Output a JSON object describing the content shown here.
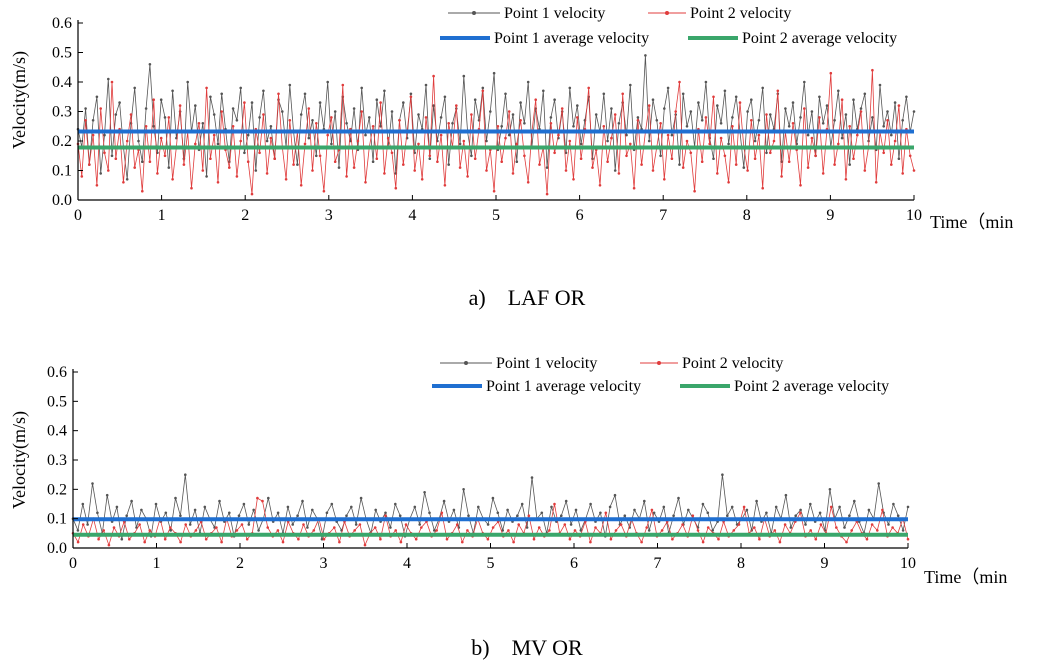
{
  "colors": {
    "point1": "#555555",
    "point2": "#e03c3c",
    "point1_avg": "#1f6fd1",
    "point2_avg": "#3aa66b"
  },
  "chart_data": [
    {
      "type": "line",
      "caption": "a)    LAF OR",
      "xlabel": "Time（min",
      "ylabel": "Velocity(m/s)",
      "xlim": [
        0,
        10
      ],
      "ylim": [
        0,
        0.6
      ],
      "xticks": [
        0,
        1,
        2,
        3,
        4,
        5,
        6,
        7,
        8,
        9,
        10
      ],
      "yticks": [
        "0.0",
        "0.1",
        "0.2",
        "0.3",
        "0.4",
        "0.5",
        "0.6"
      ],
      "legend_position": "top-right",
      "series": [
        {
          "name": "Point 1 velocity",
          "color": "#555555",
          "x_start": 0,
          "x_end": 10,
          "values": [
            0.24,
            0.18,
            0.31,
            0.12,
            0.27,
            0.35,
            0.09,
            0.22,
            0.41,
            0.15,
            0.29,
            0.33,
            0.18,
            0.07,
            0.26,
            0.38,
            0.2,
            0.13,
            0.31,
            0.46,
            0.25,
            0.16,
            0.34,
            0.28,
            0.11,
            0.37,
            0.21,
            0.3,
            0.14,
            0.4,
            0.23,
            0.32,
            0.17,
            0.26,
            0.08,
            0.35,
            0.29,
            0.19,
            0.36,
            0.24,
            0.13,
            0.31,
            0.27,
            0.38,
            0.16,
            0.22,
            0.33,
            0.1,
            0.28,
            0.37,
            0.2,
            0.25,
            0.14,
            0.34,
            0.3,
            0.18,
            0.39,
            0.23,
            0.12,
            0.29,
            0.36,
            0.21,
            0.27,
            0.15,
            0.33,
            0.24,
            0.4,
            0.19,
            0.3,
            0.11,
            0.35,
            0.26,
            0.2,
            0.31,
            0.17,
            0.38,
            0.22,
            0.28,
            0.13,
            0.34,
            0.25,
            0.37,
            0.18,
            0.3,
            0.09,
            0.27,
            0.33,
            0.21,
            0.36,
            0.16,
            0.29,
            0.24,
            0.39,
            0.14,
            0.32,
            0.2,
            0.28,
            0.35,
            0.12,
            0.26,
            0.31,
            0.19,
            0.42,
            0.23,
            0.15,
            0.34,
            0.27,
            0.38,
            0.2,
            0.3,
            0.43,
            0.17,
            0.25,
            0.36,
            0.22,
            0.29,
            0.13,
            0.33,
            0.26,
            0.4,
            0.18,
            0.31,
            0.24,
            0.37,
            0.11,
            0.28,
            0.34,
            0.21,
            0.3,
            0.16,
            0.38,
            0.25,
            0.32,
            0.19,
            0.27,
            0.35,
            0.14,
            0.29,
            0.23,
            0.36,
            0.2,
            0.31,
            0.1,
            0.26,
            0.33,
            0.22,
            0.39,
            0.17,
            0.28,
            0.24,
            0.49,
            0.2,
            0.34,
            0.27,
            0.15,
            0.31,
            0.38,
            0.22,
            0.29,
            0.12,
            0.36,
            0.25,
            0.3,
            0.18,
            0.33,
            0.27,
            0.4,
            0.21,
            0.14,
            0.32,
            0.26,
            0.37,
            0.19,
            0.28,
            0.35,
            0.23,
            0.11,
            0.3,
            0.34,
            0.2,
            0.27,
            0.38,
            0.16,
            0.29,
            0.24,
            0.36,
            0.13,
            0.31,
            0.25,
            0.33,
            0.19,
            0.28,
            0.4,
            0.22,
            0.3,
            0.15,
            0.35,
            0.26,
            0.32,
            0.18,
            0.27,
            0.37,
            0.21,
            0.29,
            0.12,
            0.34,
            0.24,
            0.31,
            0.36,
            0.2,
            0.28,
            0.17,
            0.39,
            0.25,
            0.3,
            0.22,
            0.33,
            0.14,
            0.27,
            0.35,
            0.23,
            0.3
          ]
        },
        {
          "name": "Point 2 velocity",
          "color": "#e03c3c",
          "x_start": 0,
          "x_end": 10,
          "values": [
            0.19,
            0.08,
            0.27,
            0.12,
            0.22,
            0.05,
            0.31,
            0.16,
            0.1,
            0.4,
            0.14,
            0.24,
            0.06,
            0.2,
            0.29,
            0.11,
            0.17,
            0.03,
            0.25,
            0.13,
            0.34,
            0.09,
            0.21,
            0.15,
            0.28,
            0.07,
            0.18,
            0.32,
            0.12,
            0.23,
            0.04,
            0.19,
            0.26,
            0.1,
            0.38,
            0.14,
            0.22,
            0.06,
            0.3,
            0.17,
            0.11,
            0.25,
            0.08,
            0.2,
            0.33,
            0.13,
            0.02,
            0.24,
            0.16,
            0.29,
            0.09,
            0.21,
            0.14,
            0.36,
            0.18,
            0.07,
            0.27,
            0.12,
            0.23,
            0.05,
            0.19,
            0.31,
            0.1,
            0.26,
            0.15,
            0.03,
            0.22,
            0.28,
            0.13,
            0.17,
            0.39,
            0.08,
            0.24,
            0.11,
            0.2,
            0.3,
            0.06,
            0.18,
            0.25,
            0.14,
            0.33,
            0.09,
            0.21,
            0.16,
            0.04,
            0.27,
            0.12,
            0.23,
            0.35,
            0.1,
            0.19,
            0.07,
            0.28,
            0.15,
            0.42,
            0.13,
            0.22,
            0.05,
            0.26,
            0.18,
            0.32,
            0.11,
            0.2,
            0.08,
            0.29,
            0.14,
            0.24,
            0.37,
            0.1,
            0.17,
            0.03,
            0.25,
            0.13,
            0.21,
            0.3,
            0.09,
            0.19,
            0.27,
            0.15,
            0.06,
            0.23,
            0.34,
            0.12,
            0.18,
            0.02,
            0.26,
            0.16,
            0.22,
            0.31,
            0.1,
            0.2,
            0.07,
            0.28,
            0.14,
            0.24,
            0.38,
            0.11,
            0.17,
            0.05,
            0.25,
            0.13,
            0.21,
            0.29,
            0.09,
            0.36,
            0.15,
            0.19,
            0.04,
            0.27,
            0.12,
            0.23,
            0.32,
            0.1,
            0.18,
            0.26,
            0.07,
            0.22,
            0.14,
            0.3,
            0.4,
            0.11,
            0.2,
            0.16,
            0.03,
            0.24,
            0.13,
            0.28,
            0.19,
            0.35,
            0.09,
            0.21,
            0.15,
            0.06,
            0.25,
            0.12,
            0.33,
            0.18,
            0.1,
            0.27,
            0.14,
            0.22,
            0.04,
            0.29,
            0.16,
            0.2,
            0.37,
            0.08,
            0.23,
            0.13,
            0.26,
            0.17,
            0.05,
            0.31,
            0.11,
            0.21,
            0.15,
            0.28,
            0.09,
            0.24,
            0.43,
            0.12,
            0.19,
            0.34,
            0.07,
            0.25,
            0.14,
            0.22,
            0.3,
            0.1,
            0.18,
            0.44,
            0.06,
            0.23,
            0.16,
            0.27,
            0.12,
            0.2,
            0.32,
            0.09,
            0.24,
            0.15,
            0.1
          ]
        },
        {
          "name": "Point 1 average velocity",
          "color": "#1f6fd1",
          "constant": 0.232
        },
        {
          "name": "Point 2 average velocity",
          "color": "#3aa66b",
          "constant": 0.178
        }
      ]
    },
    {
      "type": "line",
      "caption": "b)    MV OR",
      "xlabel": "Time（min",
      "ylabel": "Velocity(m/s)",
      "xlim": [
        0,
        10
      ],
      "ylim": [
        0,
        0.6
      ],
      "xticks": [
        0,
        1,
        2,
        3,
        4,
        5,
        6,
        7,
        8,
        9,
        10
      ],
      "yticks": [
        "0.0",
        "0.1",
        "0.2",
        "0.3",
        "0.4",
        "0.5",
        "0.6"
      ],
      "legend_position": "top-right",
      "series": [
        {
          "name": "Point 1 velocity",
          "color": "#555555",
          "x_start": 0,
          "x_end": 10,
          "values": [
            0.1,
            0.06,
            0.15,
            0.08,
            0.22,
            0.12,
            0.05,
            0.18,
            0.09,
            0.14,
            0.03,
            0.11,
            0.16,
            0.07,
            0.13,
            0.1,
            0.04,
            0.15,
            0.09,
            0.12,
            0.06,
            0.17,
            0.11,
            0.25,
            0.08,
            0.13,
            0.05,
            0.14,
            0.1,
            0.07,
            0.16,
            0.09,
            0.12,
            0.04,
            0.11,
            0.15,
            0.08,
            0.13,
            0.06,
            0.1,
            0.17,
            0.09,
            0.12,
            0.05,
            0.14,
            0.08,
            0.11,
            0.16,
            0.07,
            0.13,
            0.1,
            0.03,
            0.12,
            0.15,
            0.09,
            0.06,
            0.11,
            0.14,
            0.08,
            0.17,
            0.1,
            0.05,
            0.13,
            0.09,
            0.12,
            0.07,
            0.15,
            0.11,
            0.04,
            0.1,
            0.14,
            0.08,
            0.19,
            0.12,
            0.06,
            0.1,
            0.16,
            0.09,
            0.13,
            0.07,
            0.2,
            0.11,
            0.05,
            0.14,
            0.1,
            0.08,
            0.17,
            0.12,
            0.06,
            0.13,
            0.09,
            0.11,
            0.15,
            0.07,
            0.24,
            0.1,
            0.12,
            0.05,
            0.14,
            0.09,
            0.11,
            0.16,
            0.08,
            0.13,
            0.06,
            0.1,
            0.15,
            0.09,
            0.12,
            0.04,
            0.14,
            0.18,
            0.08,
            0.11,
            0.07,
            0.13,
            0.1,
            0.16,
            0.06,
            0.12,
            0.09,
            0.14,
            0.05,
            0.11,
            0.17,
            0.08,
            0.13,
            0.1,
            0.07,
            0.15,
            0.12,
            0.06,
            0.09,
            0.25,
            0.11,
            0.14,
            0.08,
            0.1,
            0.13,
            0.06,
            0.16,
            0.09,
            0.12,
            0.05,
            0.14,
            0.1,
            0.18,
            0.07,
            0.11,
            0.13,
            0.08,
            0.15,
            0.09,
            0.12,
            0.06,
            0.2,
            0.1,
            0.14,
            0.07,
            0.11,
            0.16,
            0.09,
            0.05,
            0.13,
            0.1,
            0.22,
            0.12,
            0.08,
            0.15,
            0.11,
            0.06,
            0.14
          ]
        },
        {
          "name": "Point 2 velocity",
          "color": "#e03c3c",
          "x_start": 0,
          "x_end": 10,
          "values": [
            0.05,
            0.02,
            0.08,
            0.04,
            0.1,
            0.03,
            0.06,
            0.01,
            0.07,
            0.04,
            0.09,
            0.03,
            0.05,
            0.08,
            0.02,
            0.06,
            0.04,
            0.1,
            0.03,
            0.07,
            0.05,
            0.02,
            0.08,
            0.04,
            0.06,
            0.09,
            0.03,
            0.05,
            0.07,
            0.02,
            0.1,
            0.04,
            0.06,
            0.08,
            0.03,
            0.05,
            0.17,
            0.16,
            0.07,
            0.04,
            0.06,
            0.02,
            0.09,
            0.05,
            0.03,
            0.08,
            0.04,
            0.06,
            0.1,
            0.03,
            0.05,
            0.07,
            0.02,
            0.09,
            0.04,
            0.06,
            0.08,
            0.01,
            0.05,
            0.07,
            0.03,
            0.11,
            0.04,
            0.06,
            0.02,
            0.08,
            0.05,
            0.03,
            0.07,
            0.09,
            0.04,
            0.06,
            0.12,
            0.03,
            0.05,
            0.08,
            0.02,
            0.06,
            0.04,
            0.1,
            0.05,
            0.03,
            0.07,
            0.09,
            0.04,
            0.06,
            0.02,
            0.08,
            0.05,
            0.11,
            0.03,
            0.07,
            0.04,
            0.06,
            0.15,
            0.05,
            0.08,
            0.03,
            0.06,
            0.04,
            0.09,
            0.02,
            0.07,
            0.05,
            0.12,
            0.03,
            0.06,
            0.08,
            0.04,
            0.1,
            0.05,
            0.02,
            0.07,
            0.13,
            0.04,
            0.06,
            0.09,
            0.03,
            0.05,
            0.08,
            0.04,
            0.11,
            0.06,
            0.02,
            0.07,
            0.05,
            0.03,
            0.09,
            0.04,
            0.06,
            0.08,
            0.14,
            0.05,
            0.07,
            0.03,
            0.1,
            0.04,
            0.06,
            0.02,
            0.08,
            0.05,
            0.09,
            0.12,
            0.04,
            0.06,
            0.03,
            0.08,
            0.05,
            0.14,
            0.07,
            0.04,
            0.02,
            0.06,
            0.09,
            0.05,
            0.03,
            0.08,
            0.06,
            0.13,
            0.04,
            0.07,
            0.05,
            0.1,
            0.03
          ]
        },
        {
          "name": "Point 1 average velocity",
          "color": "#1f6fd1",
          "constant": 0.098
        },
        {
          "name": "Point 2 average velocity",
          "color": "#3aa66b",
          "constant": 0.045
        }
      ]
    }
  ]
}
